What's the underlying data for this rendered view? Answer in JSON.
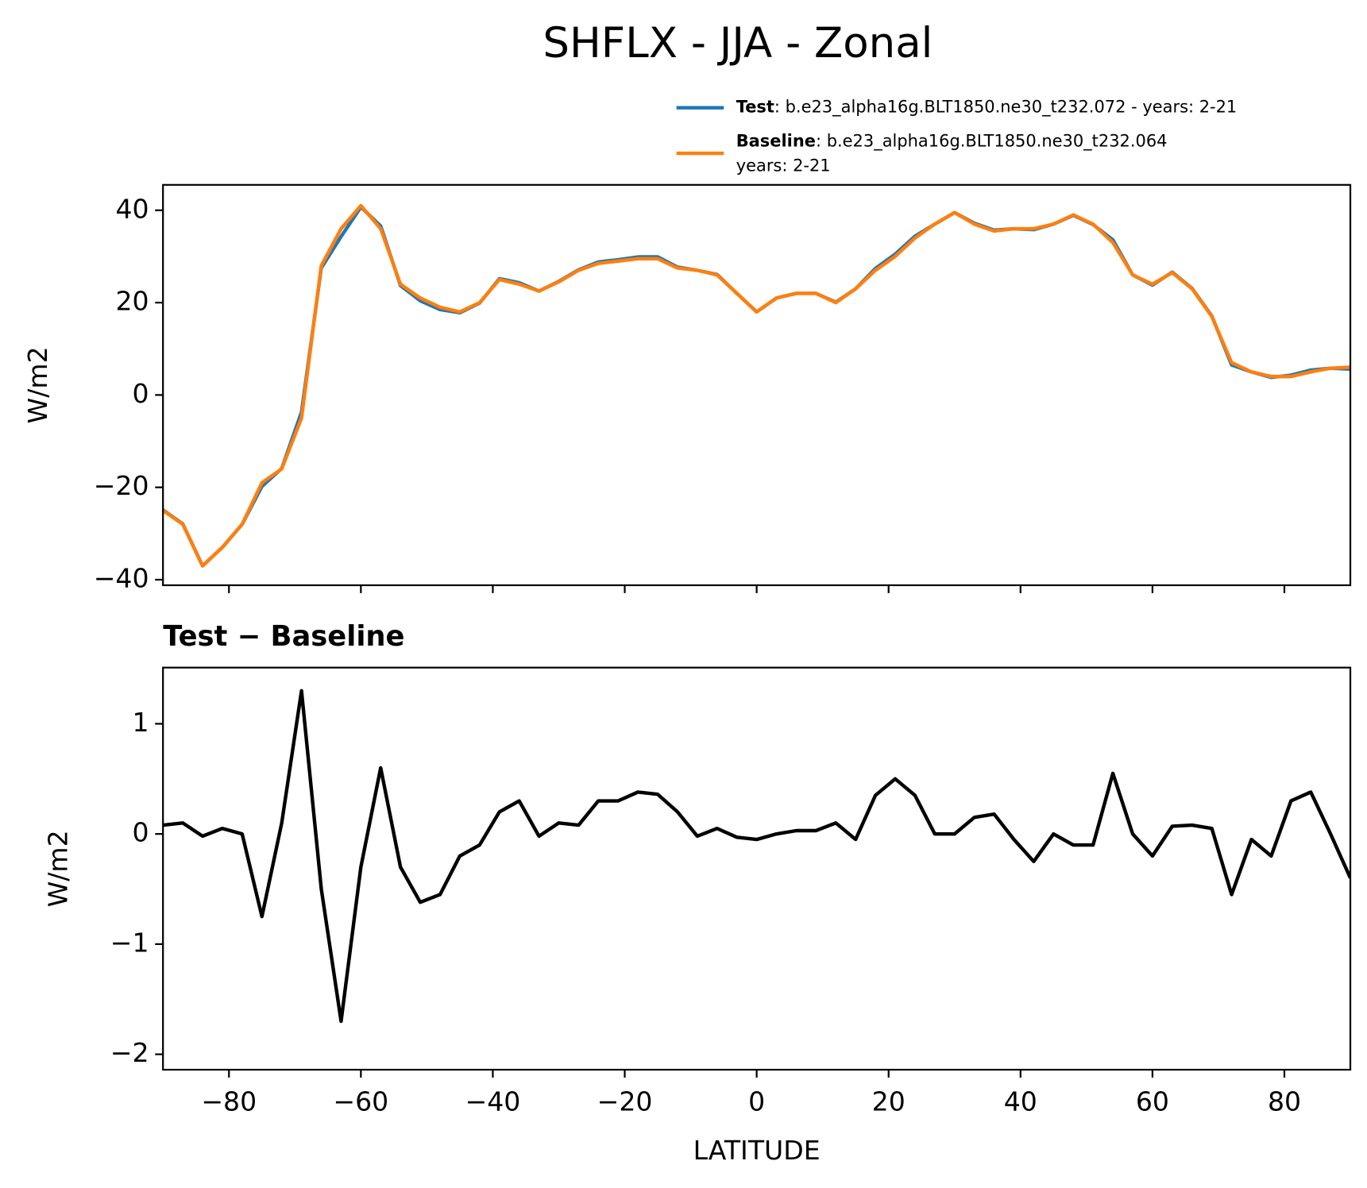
{
  "chart_data": [
    {
      "type": "line",
      "title": "SHFLX - JJA - Zonal",
      "title_loc": "center",
      "ylabel": "W/m2",
      "xlim": [
        -90,
        90
      ],
      "ylim": [
        -41.2,
        45.5
      ],
      "yticks": [
        {
          "value": -40,
          "label": "−40"
        },
        {
          "value": -20,
          "label": "−20"
        },
        0,
        20,
        40
      ],
      "x": [
        -90,
        -87,
        -84,
        -81,
        -78,
        -75,
        -72,
        -69,
        -66,
        -63,
        -60,
        -57,
        -54,
        -51,
        -48,
        -45,
        -42,
        -39,
        -36,
        -33,
        -30,
        -27,
        -24,
        -21,
        -18,
        -15,
        -12,
        -9,
        -6,
        -3,
        0,
        3,
        6,
        9,
        12,
        15,
        18,
        21,
        24,
        27,
        30,
        33,
        36,
        39,
        42,
        45,
        48,
        51,
        54,
        57,
        60,
        63,
        66,
        69,
        72,
        75,
        78,
        81,
        84,
        87,
        90
      ],
      "series": [
        {
          "name": "Test",
          "description": [
            ": b.e23_alpha16g.BLT1850.ne30_t232.072 - years: 2-21"
          ],
          "color": "#1f77b4",
          "values": [
            -24.9,
            -27.9,
            -37.0,
            -33.0,
            -28.0,
            -19.8,
            -15.9,
            -3.7,
            27.5,
            34.3,
            40.7,
            36.6,
            23.7,
            20.4,
            18.5,
            17.8,
            19.9,
            25.2,
            24.3,
            22.5,
            24.6,
            27.1,
            28.8,
            29.3,
            29.9,
            29.9,
            27.7,
            27.0,
            26.1,
            22.0,
            18.0,
            21.0,
            22.0,
            22.0,
            20.1,
            23.0,
            27.4,
            30.5,
            34.4,
            37.0,
            39.5,
            37.2,
            35.7,
            36.0,
            35.8,
            37.0,
            38.9,
            36.9,
            33.6,
            26.0,
            23.8,
            26.6,
            23.1,
            17.1,
            6.5,
            5.0,
            3.8,
            4.3,
            5.4,
            5.8,
            5.6
          ]
        },
        {
          "name": "Baseline",
          "description": [
            ": b.e23_alpha16g.BLT1850.ne30_t232.064",
            "years: 2-21"
          ],
          "color": "#ff7f0e",
          "values": [
            -25,
            -28,
            -37,
            -33,
            -28,
            -19,
            -16,
            -5,
            28,
            36,
            41,
            36,
            24,
            21,
            19,
            18,
            20,
            25,
            24,
            22.5,
            24.5,
            27,
            28.5,
            29,
            29.5,
            29.5,
            27.5,
            27,
            26,
            22,
            18,
            21,
            22,
            22,
            20,
            23,
            27,
            30,
            34,
            37,
            39.5,
            37,
            35.5,
            36,
            36,
            37,
            39,
            37,
            33,
            26,
            24,
            26.5,
            23,
            17,
            7,
            5,
            4,
            4,
            5,
            5.8,
            6
          ]
        }
      ]
    },
    {
      "type": "line",
      "title": "Test − Baseline",
      "title_loc": "left",
      "ylabel": "W/m2",
      "xlabel": "LATITUDE",
      "xlim": [
        -90,
        90
      ],
      "ylim": [
        -2.14,
        1.51
      ],
      "yticks": [
        {
          "value": -2,
          "label": "−2"
        },
        {
          "value": -1,
          "label": "−1"
        },
        0,
        1
      ],
      "xticks": [
        {
          "value": -80,
          "label": "−80"
        },
        {
          "value": -60,
          "label": "−60"
        },
        {
          "value": -40,
          "label": "−40"
        },
        {
          "value": -20,
          "label": "−20"
        },
        0,
        20,
        40,
        60,
        80
      ],
      "x": [
        -90,
        -87,
        -84,
        -81,
        -78,
        -75,
        -72,
        -69,
        -66,
        -63,
        -60,
        -57,
        -54,
        -51,
        -48,
        -45,
        -42,
        -39,
        -36,
        -33,
        -30,
        -27,
        -24,
        -21,
        -18,
        -15,
        -12,
        -9,
        -6,
        -3,
        0,
        3,
        6,
        9,
        12,
        15,
        18,
        21,
        24,
        27,
        30,
        33,
        36,
        39,
        42,
        45,
        48,
        51,
        54,
        57,
        60,
        63,
        66,
        69,
        72,
        75,
        78,
        81,
        84,
        87,
        90
      ],
      "color": "#000000",
      "values": [
        0.08,
        0.1,
        -0.02,
        0.05,
        0.0,
        -0.75,
        0.1,
        1.3,
        -0.5,
        -1.7,
        -0.3,
        0.6,
        -0.3,
        -0.62,
        -0.55,
        -0.2,
        -0.1,
        0.2,
        0.3,
        -0.02,
        0.1,
        0.08,
        0.3,
        0.3,
        0.38,
        0.36,
        0.2,
        -0.02,
        0.05,
        -0.03,
        -0.05,
        0.0,
        0.03,
        0.03,
        0.1,
        -0.05,
        0.35,
        0.5,
        0.35,
        0.0,
        0.0,
        0.15,
        0.18,
        -0.05,
        -0.25,
        0.0,
        -0.1,
        -0.1,
        0.55,
        0.0,
        -0.2,
        0.07,
        0.08,
        0.05,
        -0.55,
        -0.05,
        -0.2,
        0.3,
        0.38,
        0.0,
        -0.4
      ]
    }
  ]
}
